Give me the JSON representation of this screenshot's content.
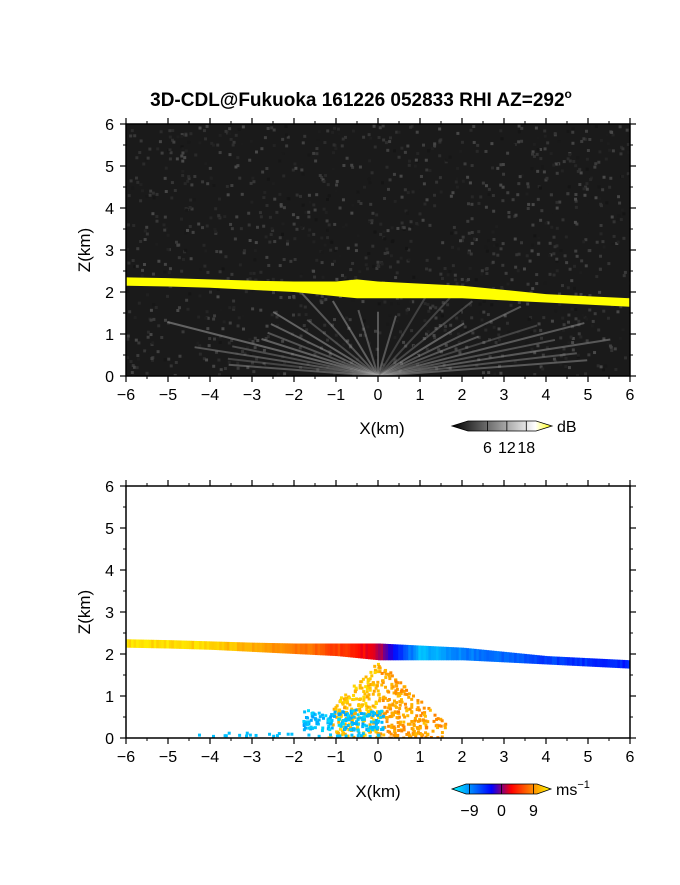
{
  "figure": {
    "title": "3D-CDL@Fukuoka 161226 052833 RHI AZ=292",
    "title_degree": "o"
  },
  "chart_data": [
    {
      "type": "heatmap",
      "quantity": "reflectivity",
      "xlabel": "X(km)",
      "ylabel": "Z(km)",
      "xlim": [
        -6,
        6
      ],
      "ylim": [
        0,
        6
      ],
      "xticks": [
        -6,
        -5,
        -4,
        -3,
        -2,
        -1,
        0,
        1,
        2,
        3,
        4,
        5,
        6
      ],
      "yticks": [
        0,
        1,
        2,
        3,
        4,
        5,
        6
      ],
      "background_color": "#1a1a1a",
      "layer": {
        "x": [
          -6,
          -5,
          -4,
          -3,
          -2,
          -1,
          -0.5,
          0,
          1,
          2,
          3,
          4,
          5,
          6
        ],
        "top": [
          2.35,
          2.33,
          2.3,
          2.27,
          2.25,
          2.25,
          2.3,
          2.25,
          2.2,
          2.15,
          2.05,
          1.95,
          1.9,
          1.85
        ],
        "bottom": [
          2.15,
          2.13,
          2.1,
          2.05,
          2.0,
          1.9,
          1.85,
          1.85,
          1.85,
          1.85,
          1.8,
          1.75,
          1.7,
          1.65
        ],
        "color": "#ffff00"
      },
      "colorbar": {
        "label": "dB",
        "ticks": [
          "6",
          "12",
          "18"
        ],
        "range": [
          0,
          21
        ],
        "colors": [
          "#000000",
          "#333333",
          "#666666",
          "#999999",
          "#cccccc",
          "#ffffff",
          "#ffff00"
        ]
      }
    },
    {
      "type": "heatmap",
      "quantity": "doppler velocity",
      "xlabel": "X(km)",
      "ylabel": "Z(km)",
      "xlim": [
        -6,
        6
      ],
      "ylim": [
        0,
        6
      ],
      "xticks": [
        -6,
        -5,
        -4,
        -3,
        -2,
        -1,
        0,
        1,
        2,
        3,
        4,
        5,
        6
      ],
      "yticks": [
        0,
        1,
        2,
        3,
        4,
        5,
        6
      ],
      "layer": {
        "x": [
          -6,
          -5,
          -4,
          -3,
          -2,
          -1,
          0,
          1,
          2,
          3,
          4,
          5,
          6
        ],
        "top": [
          2.35,
          2.33,
          2.3,
          2.27,
          2.25,
          2.25,
          2.25,
          2.2,
          2.15,
          2.05,
          1.95,
          1.9,
          1.85
        ],
        "bottom": [
          2.15,
          2.13,
          2.1,
          2.05,
          2.0,
          1.95,
          1.85,
          1.85,
          1.85,
          1.8,
          1.75,
          1.7,
          1.65
        ],
        "velocity": [
          9,
          9,
          8.5,
          7.5,
          6,
          4,
          1,
          -8,
          -6,
          -5,
          -4,
          -3.5,
          -3
        ]
      },
      "colorbar": {
        "label": "ms",
        "label_exponent": "−1",
        "ticks": [
          "−9",
          "0",
          "9"
        ],
        "range": [
          -10,
          10
        ],
        "colors": [
          "#00ffff",
          "#0080ff",
          "#0000ff",
          "#ff0000",
          "#ff8000",
          "#ffff00"
        ]
      }
    }
  ]
}
